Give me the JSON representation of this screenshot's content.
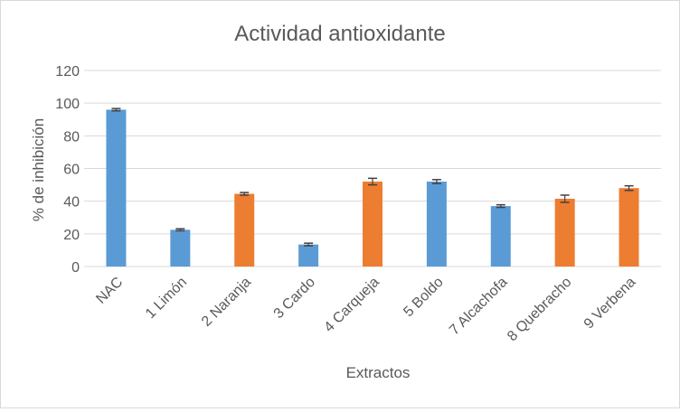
{
  "chart_data": {
    "type": "bar",
    "title": "Actividad antioxidante",
    "xlabel": "Extractos",
    "ylabel": "% de inhibición",
    "ylim": [
      0,
      120
    ],
    "yticks": [
      0,
      20,
      40,
      60,
      80,
      100,
      120
    ],
    "grid": true,
    "legend": "none",
    "categories": [
      "NAC",
      "1 Limón",
      "2 Naranja",
      "3 Cardo",
      "4 Carqueja",
      "5 Boldo",
      "7 Alcachofa",
      "8 Quebracho",
      "9 Verbena"
    ],
    "values": [
      96,
      22.5,
      44.5,
      13.5,
      52,
      52,
      37,
      41.5,
      48
    ],
    "errors": [
      0.7,
      0.6,
      0.8,
      0.8,
      2.0,
      1.2,
      0.8,
      2.2,
      1.4
    ],
    "bar_colors": [
      "#5b9bd5",
      "#5b9bd5",
      "#ed7d31",
      "#5b9bd5",
      "#ed7d31",
      "#5b9bd5",
      "#5b9bd5",
      "#ed7d31",
      "#ed7d31"
    ],
    "gridline_color": "#d9d9d9",
    "errorbar_color": "#404040"
  }
}
